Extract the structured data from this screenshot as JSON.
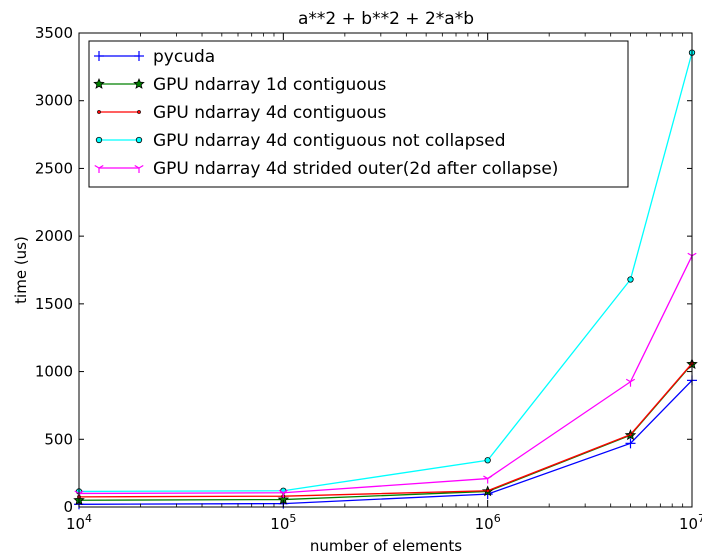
{
  "chart_data": {
    "type": "line",
    "title": "a**2 + b**2 + 2*a*b",
    "xlabel": "number of elements",
    "ylabel": "time (us)",
    "xscale": "log",
    "xlim": [
      10000,
      10000000
    ],
    "ylim": [
      0,
      3500
    ],
    "x_ticks": [
      {
        "base": "10",
        "exp": "4"
      },
      {
        "base": "10",
        "exp": "5"
      },
      {
        "base": "10",
        "exp": "6"
      },
      {
        "base": "10",
        "exp": "7"
      }
    ],
    "y_ticks": [
      "0",
      "500",
      "1000",
      "1500",
      "2000",
      "2500",
      "3000",
      "3500"
    ],
    "grid": false,
    "legend_position": "top-left",
    "x": [
      10000,
      100000,
      1000000,
      5000000,
      10000000
    ],
    "series": [
      {
        "name": "pycuda",
        "color": "#0000ff",
        "marker": "plus",
        "values": [
          20,
          25,
          95,
          470,
          935
        ]
      },
      {
        "name": "GPU ndarray 1d contiguous",
        "color": "#008000",
        "marker": "star",
        "values": [
          50,
          55,
          115,
          530,
          1055
        ]
      },
      {
        "name": "GPU ndarray 4d contiguous",
        "color": "#ff0000",
        "marker": "point",
        "values": [
          75,
          80,
          120,
          535,
          1060
        ]
      },
      {
        "name": "GPU ndarray 4d contiguous not collapsed",
        "color": "#00ffff",
        "marker": "circle",
        "values": [
          115,
          120,
          345,
          1680,
          3355
        ]
      },
      {
        "name": "GPU ndarray 4d strided outer(2d after collapse)",
        "color": "#ff00ff",
        "marker": "tri_down",
        "values": [
          100,
          105,
          210,
          925,
          1855
        ]
      }
    ]
  }
}
